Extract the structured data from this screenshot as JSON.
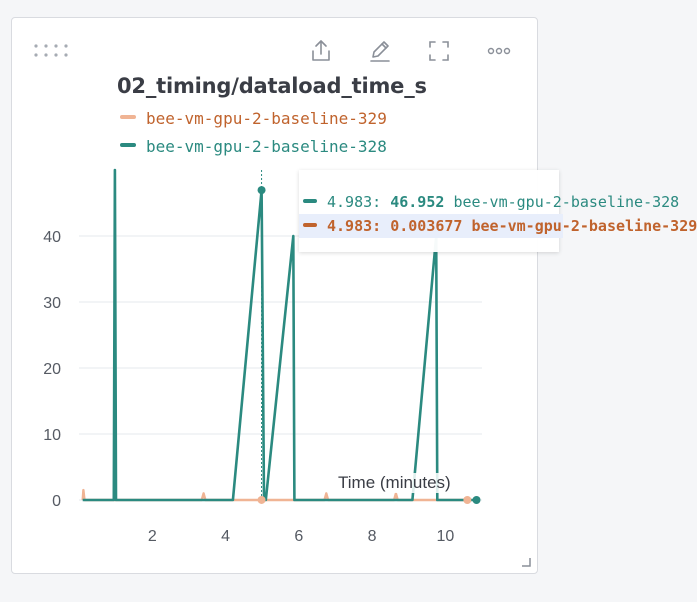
{
  "panel": {
    "title": "02_timing/dataload_time_s",
    "icons": [
      "drag-handle-icon",
      "share-icon",
      "edit-icon",
      "fullscreen-icon",
      "more-icon"
    ]
  },
  "legend": [
    {
      "name": "bee-vm-gpu-2-baseline-329",
      "color": "#f0b494"
    },
    {
      "name": "bee-vm-gpu-2-baseline-328",
      "color": "#2b8a80"
    }
  ],
  "tooltip": {
    "rows": [
      {
        "x": "4.983:",
        "value": "46.952",
        "series": "bee-vm-gpu-2-baseline-328"
      },
      {
        "x": "4.983:",
        "value": "0.003677",
        "series": "bee-vm-gpu-2-baseline-329"
      }
    ]
  },
  "chart_data": {
    "type": "line",
    "title": "02_timing/dataload_time_s",
    "xlabel": "Time (minutes)",
    "ylabel": "",
    "xlim": [
      0,
      11
    ],
    "ylim": [
      0,
      50
    ],
    "xticks": [
      2,
      4,
      6,
      8,
      10
    ],
    "yticks": [
      0,
      10,
      20,
      30,
      40
    ],
    "grid": true,
    "series": [
      {
        "name": "bee-vm-gpu-2-baseline-328",
        "color": "#2b8a80",
        "x": [
          0.1,
          0.95,
          0.98,
          1.01,
          4.2,
          4.983,
          5.05,
          5.1,
          5.85,
          5.88,
          5.91,
          9.1,
          9.75,
          9.78,
          9.81,
          10.85
        ],
        "y": [
          0,
          0,
          50,
          0,
          0,
          46.952,
          0,
          0,
          40,
          0,
          0,
          0,
          40,
          0,
          0,
          0
        ]
      },
      {
        "name": "bee-vm-gpu-2-baseline-329",
        "color": "#f0b494",
        "x": [
          0.1,
          0.12,
          0.15,
          3.35,
          3.4,
          3.45,
          4.983,
          6.7,
          6.75,
          6.8,
          8.6,
          8.65,
          8.7,
          10.6
        ],
        "y": [
          0,
          1.5,
          0,
          0,
          1,
          0,
          0.003677,
          0,
          1,
          0,
          0,
          1,
          0,
          0
        ]
      }
    ],
    "hover_x": 4.983
  }
}
